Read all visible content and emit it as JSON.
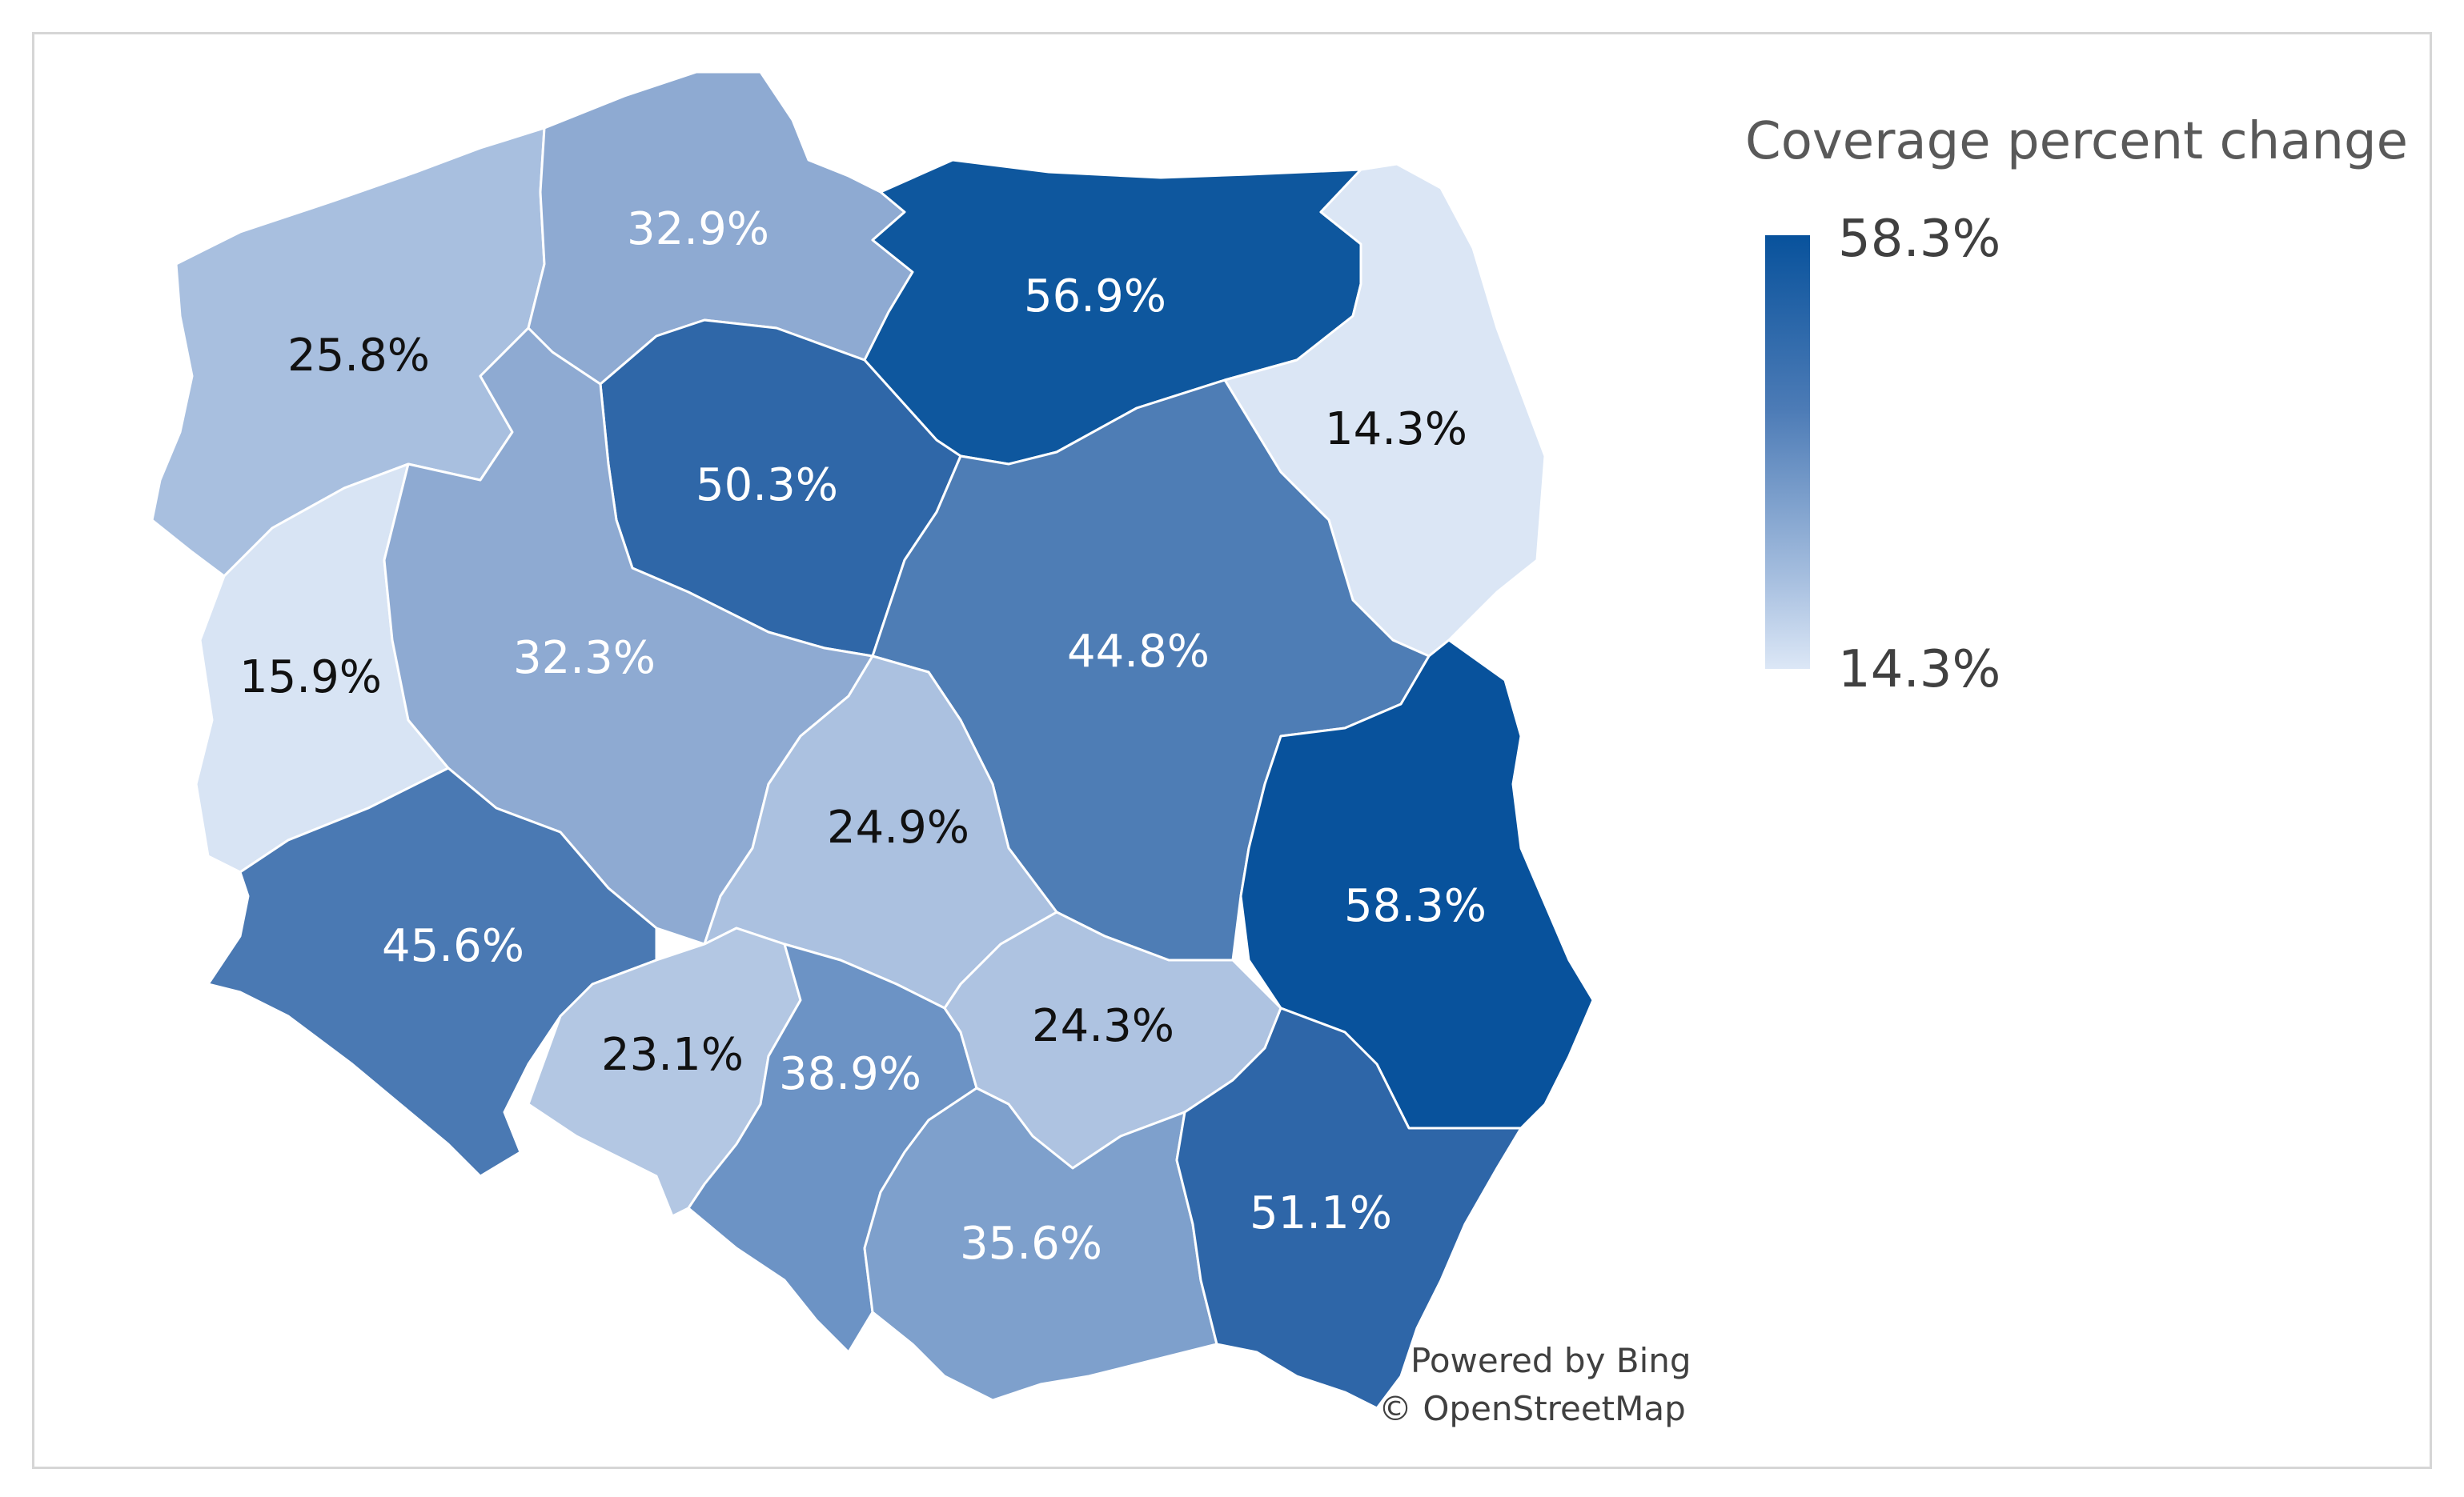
{
  "legend": {
    "title": "Coverage percent change",
    "max_label": "58.3%",
    "min_label": "14.3%",
    "color_max": "#08529c",
    "color_min": "#dce7f6"
  },
  "attribution": {
    "bing": "Powered by Bing",
    "osm": "© OpenStreetMap"
  },
  "regions": [
    {
      "id": "zachodniopomorskie",
      "label": "25.8%",
      "value": 25.8,
      "fill": "#a8bfdf",
      "text_color": "#111111"
    },
    {
      "id": "pomorskie",
      "label": "32.9%",
      "value": 32.9,
      "fill": "#8eaad2",
      "text_color": "#ffffff"
    },
    {
      "id": "warminsko-mazurskie",
      "label": "56.9%",
      "value": 56.9,
      "fill": "#0e579e",
      "text_color": "#ffffff"
    },
    {
      "id": "podlaskie",
      "label": "14.3%",
      "value": 14.3,
      "fill": "#dbe6f5",
      "text_color": "#111111"
    },
    {
      "id": "kujawsko-pomorskie",
      "label": "50.3%",
      "value": 50.3,
      "fill": "#2f67a8",
      "text_color": "#ffffff"
    },
    {
      "id": "lubuskie",
      "label": "15.9%",
      "value": 15.9,
      "fill": "#d8e4f4",
      "text_color": "#111111"
    },
    {
      "id": "wielkopolskie",
      "label": "32.3%",
      "value": 32.3,
      "fill": "#8eaad2",
      "text_color": "#ffffff"
    },
    {
      "id": "mazowieckie",
      "label": "44.8%",
      "value": 44.8,
      "fill": "#4e7db5",
      "text_color": "#ffffff"
    },
    {
      "id": "lodzkie",
      "label": "24.9%",
      "value": 24.9,
      "fill": "#abc1e0",
      "text_color": "#111111"
    },
    {
      "id": "lubelskie",
      "label": "58.3%",
      "value": 58.3,
      "fill": "#08529c",
      "text_color": "#ffffff"
    },
    {
      "id": "dolnoslaskie",
      "label": "45.6%",
      "value": 45.6,
      "fill": "#4a79b3",
      "text_color": "#ffffff"
    },
    {
      "id": "opolskie",
      "label": "23.1%",
      "value": 23.1,
      "fill": "#b3c7e3",
      "text_color": "#111111"
    },
    {
      "id": "slaskie",
      "label": "38.9%",
      "value": 38.9,
      "fill": "#6c93c5",
      "text_color": "#ffffff"
    },
    {
      "id": "swietokrzyskie",
      "label": "24.3%",
      "value": 24.3,
      "fill": "#aec3e1",
      "text_color": "#111111"
    },
    {
      "id": "malopolskie",
      "label": "35.6%",
      "value": 35.6,
      "fill": "#7ea0cc",
      "text_color": "#ffffff"
    },
    {
      "id": "podkarpackie",
      "label": "51.1%",
      "value": 51.1,
      "fill": "#2e66a8",
      "text_color": "#ffffff"
    }
  ]
}
